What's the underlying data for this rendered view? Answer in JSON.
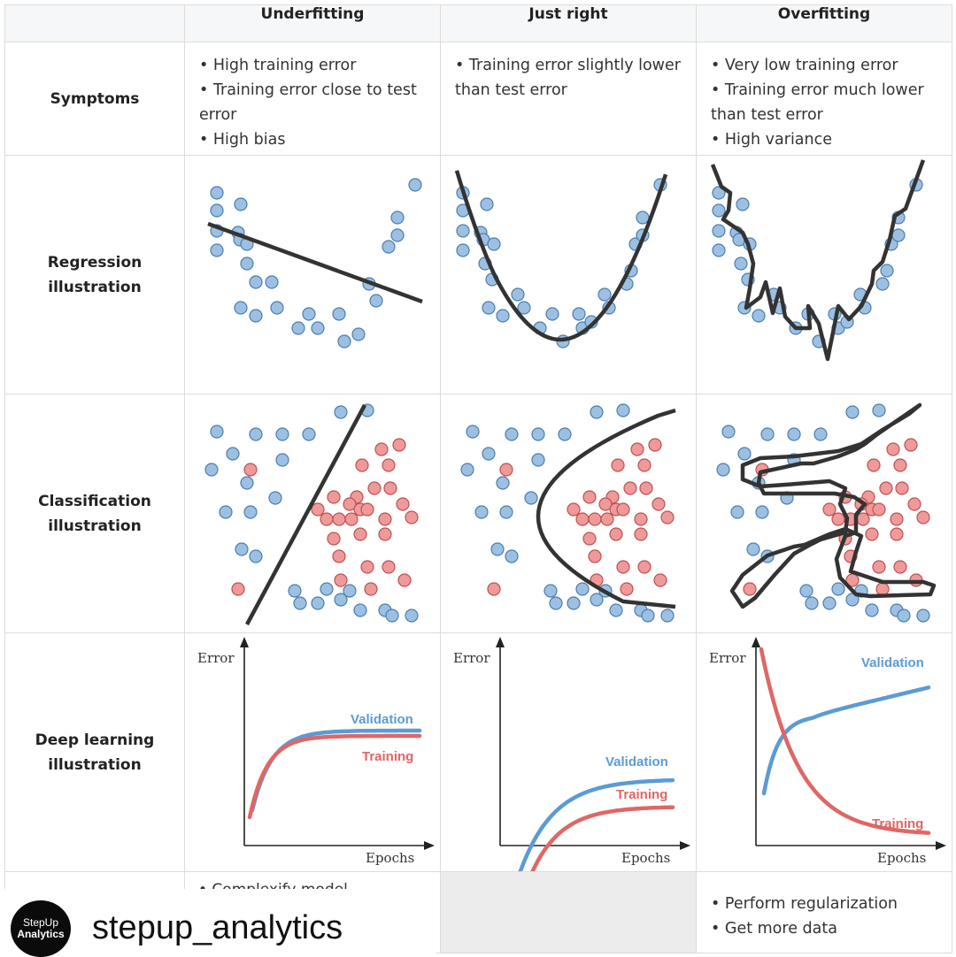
{
  "columns": [
    "Underfitting",
    "Just right",
    "Overfitting"
  ],
  "rows": {
    "symptoms": "Symptoms",
    "regression": [
      "Regression",
      "illustration"
    ],
    "classification": [
      "Classification",
      "illustration"
    ],
    "deep_learning": [
      "Deep learning",
      "illustration"
    ]
  },
  "symptoms": {
    "underfitting": [
      "• High training error",
      "• Training error close to test error",
      "• High bias"
    ],
    "just_right": [
      "• Training error slightly lower than test error"
    ],
    "overfitting": [
      "• Very low training error",
      "• Training error much lower than test error",
      "• High variance"
    ]
  },
  "remedies": {
    "underfitting_partial": "• Complexify model",
    "overfitting": [
      "• Perform regularization",
      "• Get more data"
    ]
  },
  "curves": {
    "y_axis": "Error",
    "x_axis": "Epochs",
    "validation": "Validation",
    "training": "Training"
  },
  "colors": {
    "blue": "#5b9bd5",
    "blue_point": "#9dc0e2",
    "red": "#e06666",
    "red_point": "#ef9a9a",
    "line": "#333333"
  },
  "watermark": {
    "logo_line1": "StepUp",
    "logo_line2": "Analytics",
    "handle": "stepup_analytics"
  }
}
